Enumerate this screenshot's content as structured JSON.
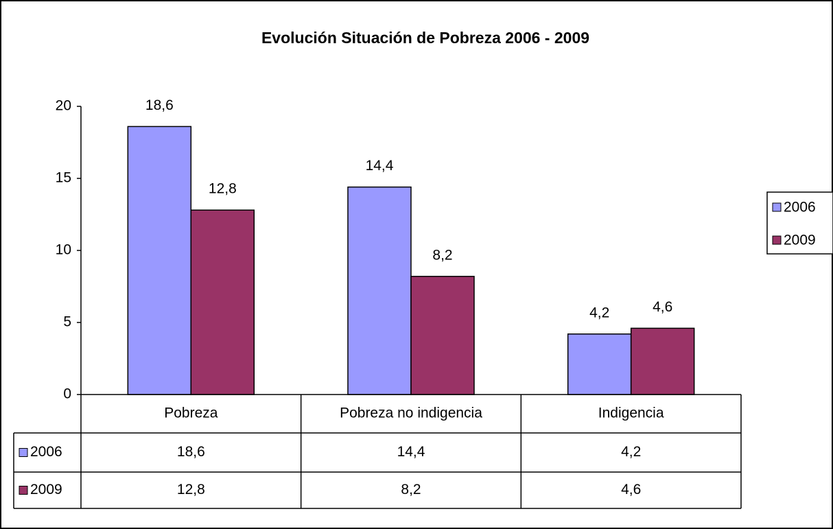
{
  "chart_data": {
    "type": "bar",
    "title": "Evolución Situación de Pobreza 2006 - 2009",
    "categories": [
      "Pobreza",
      "Pobreza no indigencia",
      "Indigencia"
    ],
    "series": [
      {
        "name": "2006",
        "color": "#9999ff",
        "values": [
          18.6,
          14.4,
          4.2
        ],
        "value_labels": [
          "18,6",
          "14,4",
          "4,2"
        ]
      },
      {
        "name": "2009",
        "color": "#993366",
        "values": [
          12.8,
          8.2,
          4.6
        ],
        "value_labels": [
          "12,8",
          "8,2",
          "4,6"
        ]
      }
    ],
    "ylim": [
      0,
      20
    ],
    "yticks": [
      0,
      5,
      10,
      15,
      20
    ],
    "grid": false,
    "legend": "right"
  }
}
